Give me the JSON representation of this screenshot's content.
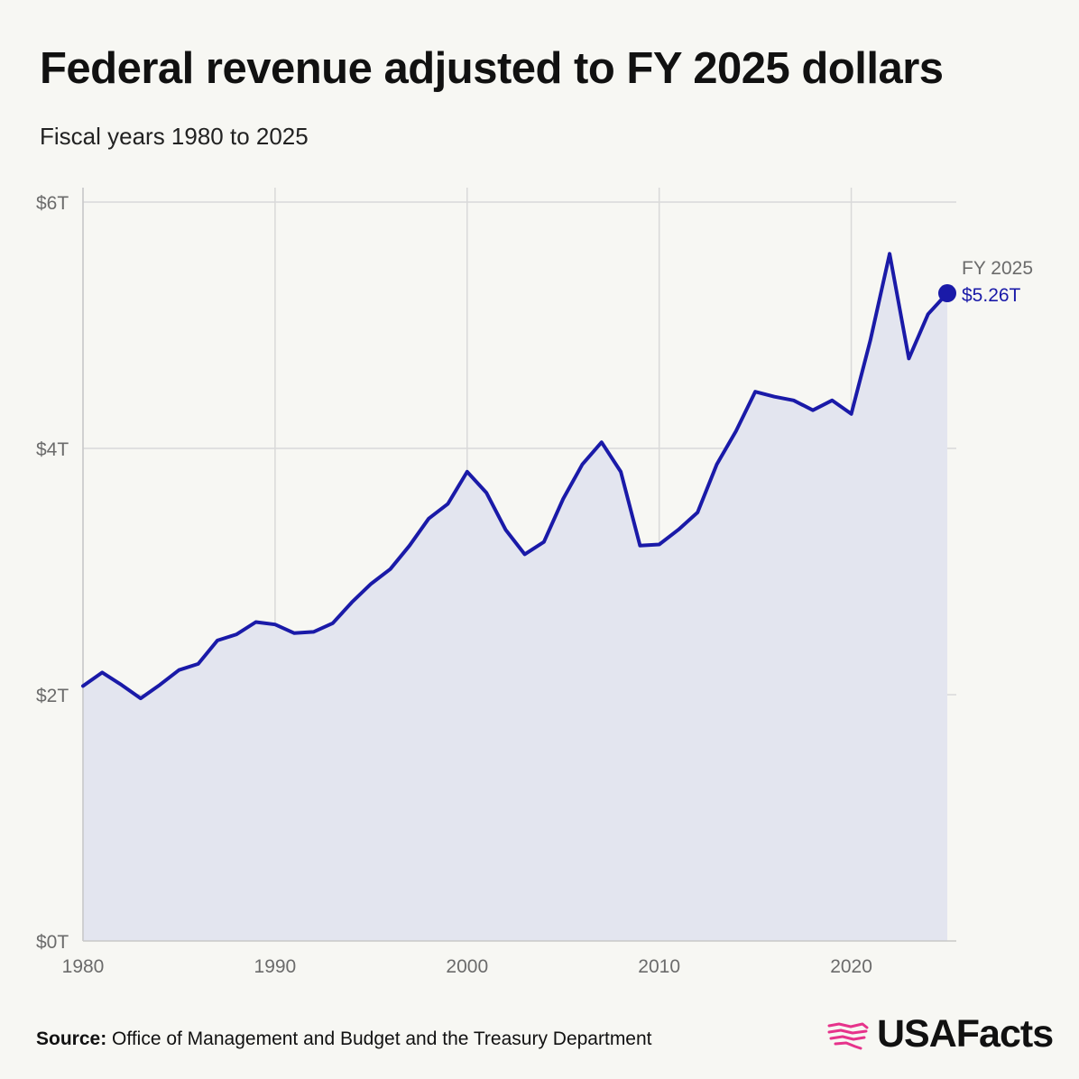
{
  "header": {
    "title": "Federal revenue adjusted to FY 2025 dollars",
    "subtitle": "Fiscal years 1980 to 2025"
  },
  "footer": {
    "source_label": "Source:",
    "source_text": "Office of Management and Budget and the Treasury Department",
    "brand": "USAFacts"
  },
  "annotation": {
    "label": "FY 2025",
    "value": "$5.26T"
  },
  "colors": {
    "line": "#1a1aa8",
    "area": "#e3e5ef",
    "grid": "#d9d9d9",
    "brand_icon": "#e6338b"
  },
  "chart_data": {
    "type": "area",
    "title": "Federal revenue adjusted to FY 2025 dollars",
    "subtitle": "Fiscal years 1980 to 2025",
    "xlabel": "",
    "ylabel": "",
    "x_ticks": [
      1980,
      1990,
      2000,
      2010,
      2020
    ],
    "y_ticks": [
      {
        "value": 0,
        "label": "$0T"
      },
      {
        "value": 2,
        "label": "$2T"
      },
      {
        "value": 4,
        "label": "$4T"
      },
      {
        "value": 6,
        "label": "$6T"
      }
    ],
    "xlim": [
      1980,
      2025
    ],
    "ylim": [
      0,
      6.1
    ],
    "grid": true,
    "series": [
      {
        "name": "",
        "x": [
          1980,
          1981,
          1982,
          1983,
          1984,
          1985,
          1986,
          1987,
          1988,
          1989,
          1990,
          1991,
          1992,
          1993,
          1994,
          1995,
          1996,
          1997,
          1998,
          1999,
          2000,
          2001,
          2002,
          2003,
          2004,
          2005,
          2006,
          2007,
          2008,
          2009,
          2010,
          2011,
          2012,
          2013,
          2014,
          2015,
          2016,
          2017,
          2018,
          2019,
          2020,
          2021,
          2022,
          2023,
          2024,
          2025
        ],
        "values": [
          2.07,
          2.18,
          2.08,
          1.97,
          2.08,
          2.2,
          2.25,
          2.44,
          2.49,
          2.59,
          2.57,
          2.5,
          2.51,
          2.58,
          2.75,
          2.9,
          3.02,
          3.21,
          3.43,
          3.55,
          3.81,
          3.64,
          3.34,
          3.14,
          3.24,
          3.59,
          3.87,
          4.05,
          3.81,
          3.21,
          3.22,
          3.34,
          3.48,
          3.87,
          4.14,
          4.46,
          4.42,
          4.39,
          4.31,
          4.39,
          4.28,
          4.88,
          5.58,
          4.73,
          5.09,
          5.26
        ]
      }
    ]
  }
}
